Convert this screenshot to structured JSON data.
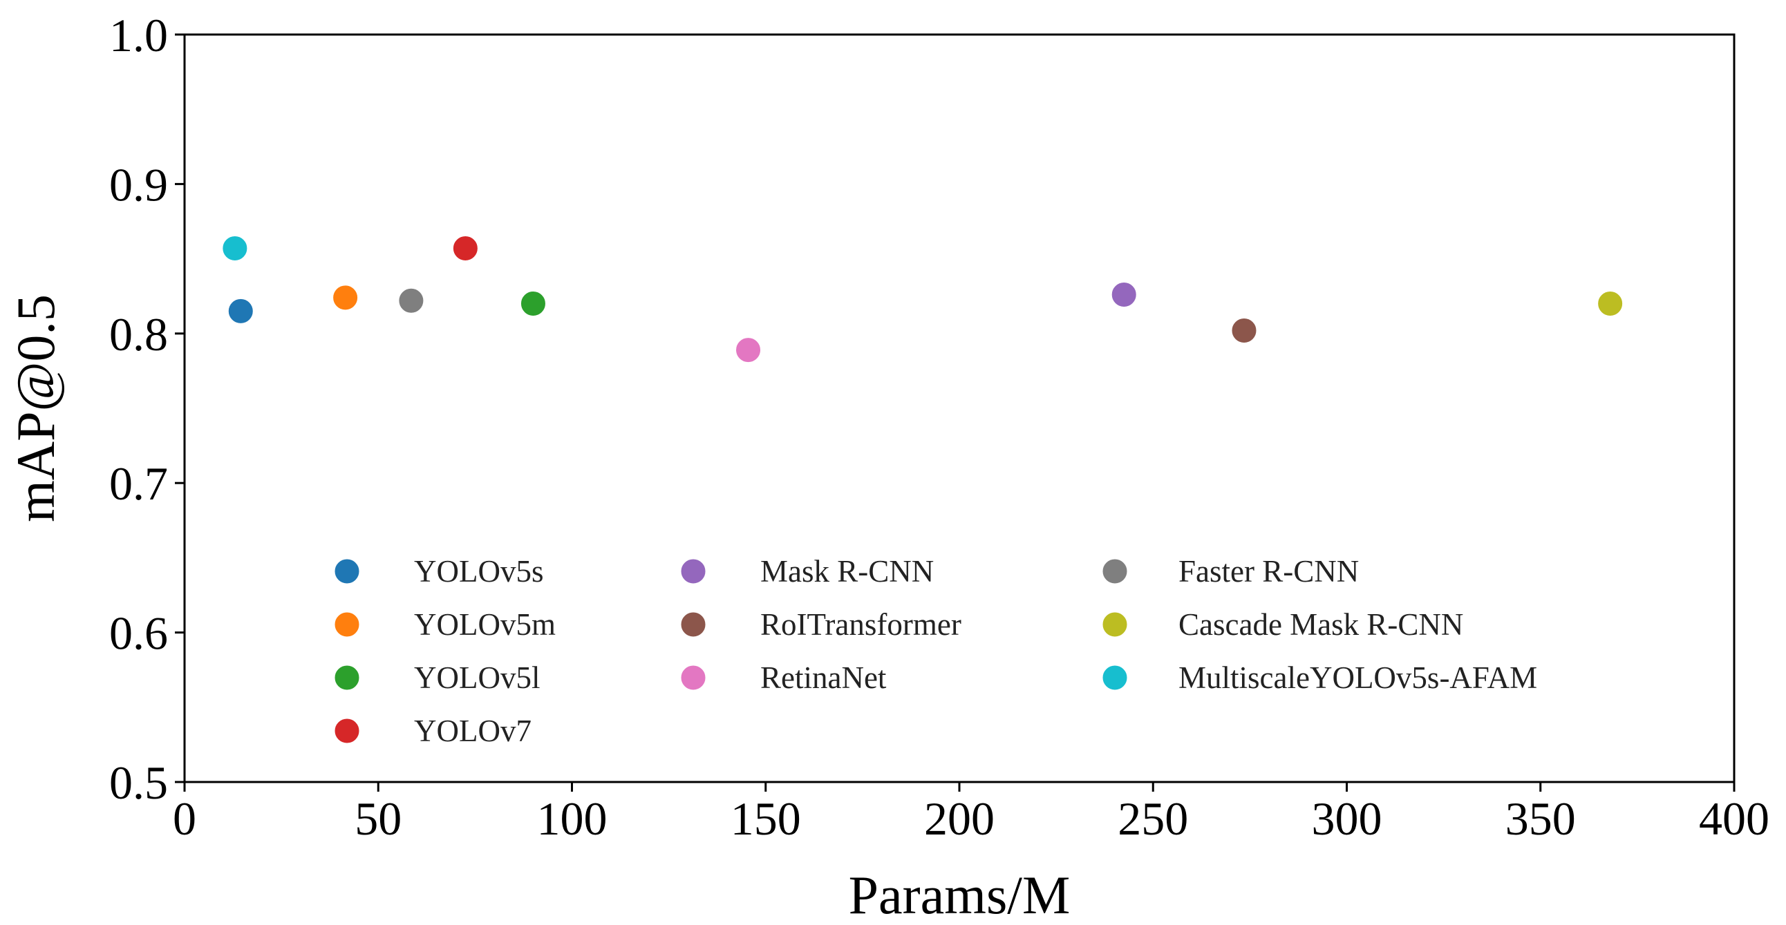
{
  "chart_data": {
    "type": "scatter",
    "title": "",
    "xlabel": "Params/M",
    "ylabel": "mAP@0.5",
    "xlim": [
      0,
      400
    ],
    "ylim": [
      0.5,
      1.0
    ],
    "xticks": [
      "0",
      "50",
      "100",
      "150",
      "200",
      "250",
      "300",
      "350",
      "400"
    ],
    "xtick_values": [
      0,
      50,
      100,
      150,
      200,
      250,
      300,
      350,
      400
    ],
    "yticks": [
      "0.5",
      "0.6",
      "0.7",
      "0.8",
      "0.9",
      "1.0"
    ],
    "ytick_values": [
      0.5,
      0.6,
      0.7,
      0.8,
      0.9,
      1.0
    ],
    "grid": false,
    "legend_position": "lower-center",
    "series": [
      {
        "name": "YOLOv5s",
        "color": "#1f77b4",
        "x": 14.5,
        "y": 0.815
      },
      {
        "name": "YOLOv5m",
        "color": "#ff7f0e",
        "x": 41.5,
        "y": 0.824
      },
      {
        "name": "YOLOv5l",
        "color": "#2ca02c",
        "x": 90,
        "y": 0.82
      },
      {
        "name": "YOLOv7",
        "color": "#d62728",
        "x": 72.5,
        "y": 0.857
      },
      {
        "name": "Mask R-CNN",
        "color": "#9467bd",
        "x": 242.5,
        "y": 0.826
      },
      {
        "name": "RoITransformer",
        "color": "#8c564b",
        "x": 273.5,
        "y": 0.802
      },
      {
        "name": "RetinaNet",
        "color": "#e377c2",
        "x": 145.5,
        "y": 0.789
      },
      {
        "name": "Faster R-CNN",
        "color": "#7f7f7f",
        "x": 58.5,
        "y": 0.822
      },
      {
        "name": "Cascade Mask R-CNN",
        "color": "#bcbd22",
        "x": 368,
        "y": 0.82
      },
      {
        "name": "MultiscaleYOLOv5s-AFAM",
        "color": "#17becf",
        "x": 13,
        "y": 0.857
      }
    ],
    "legend_columns": [
      [
        "YOLOv5s",
        "YOLOv5m",
        "YOLOv5l",
        "YOLOv7"
      ],
      [
        "Mask R-CNN",
        "RoITransformer",
        "RetinaNet"
      ],
      [
        "Faster R-CNN",
        "Cascade Mask R-CNN",
        "MultiscaleYOLOv5s-AFAM"
      ]
    ]
  }
}
